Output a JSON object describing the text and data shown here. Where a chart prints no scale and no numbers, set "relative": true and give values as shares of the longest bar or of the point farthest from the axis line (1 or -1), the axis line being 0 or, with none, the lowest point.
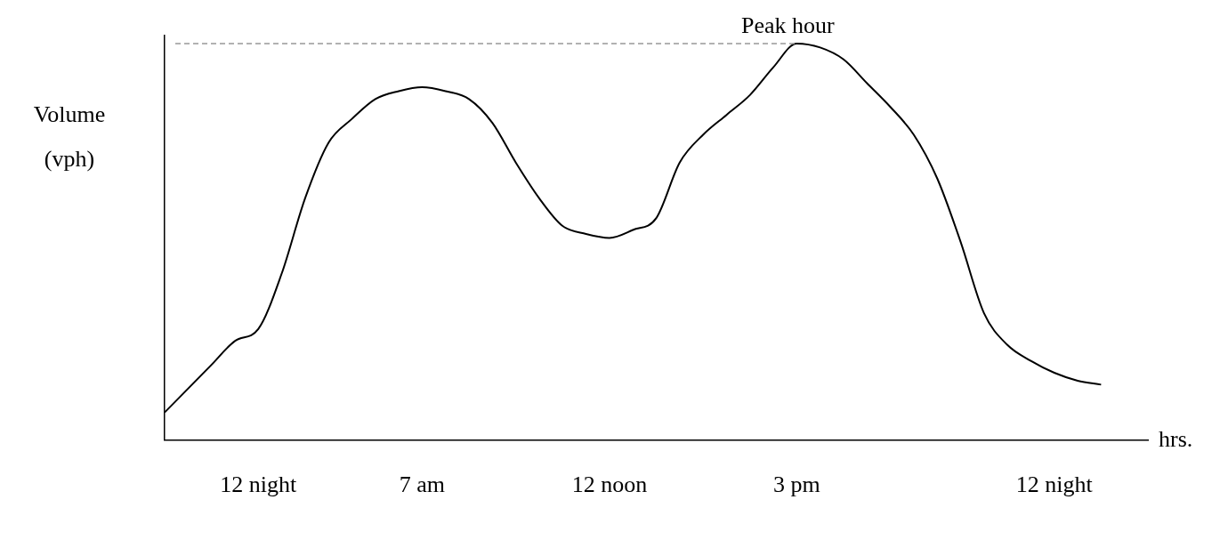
{
  "chart_data": {
    "type": "line",
    "relative": true,
    "ylabel": "Volume (vph)",
    "xlabel": "hrs.",
    "categories": [
      null,
      null,
      null,
      null,
      "12 night",
      null,
      null,
      null,
      null,
      null,
      null,
      "7 am",
      null,
      null,
      null,
      null,
      null,
      null,
      null,
      "12 noon",
      null,
      null,
      null,
      null,
      null,
      null,
      null,
      "3 pm",
      null,
      null,
      null,
      null,
      null,
      null,
      null,
      null,
      null,
      null,
      "12 night",
      null,
      null,
      null,
      null
    ],
    "series": [
      {
        "color": "#000000",
        "values": [
          0.07,
          0.13,
          0.19,
          0.25,
          0.28,
          0.42,
          0.61,
          0.75,
          0.81,
          0.86,
          0.88,
          0.89,
          0.88,
          0.86,
          0.8,
          0.7,
          0.61,
          0.54,
          0.52,
          0.51,
          0.53,
          0.56,
          0.7,
          0.77,
          0.82,
          0.87,
          0.94,
          1,
          0.99,
          0.96,
          0.9,
          0.84,
          0.77,
          0.66,
          0.5,
          0.32,
          0.24,
          0.2,
          0.17,
          0.15,
          0.14,
          null,
          null
        ]
      }
    ],
    "ref_lines": [
      {
        "axis": "y",
        "value": 1,
        "label": "Peak hour",
        "color": "#999999",
        "line_style": "dashed"
      }
    ],
    "marker": "none",
    "line_style": "solid",
    "grid": false,
    "legend": false
  }
}
